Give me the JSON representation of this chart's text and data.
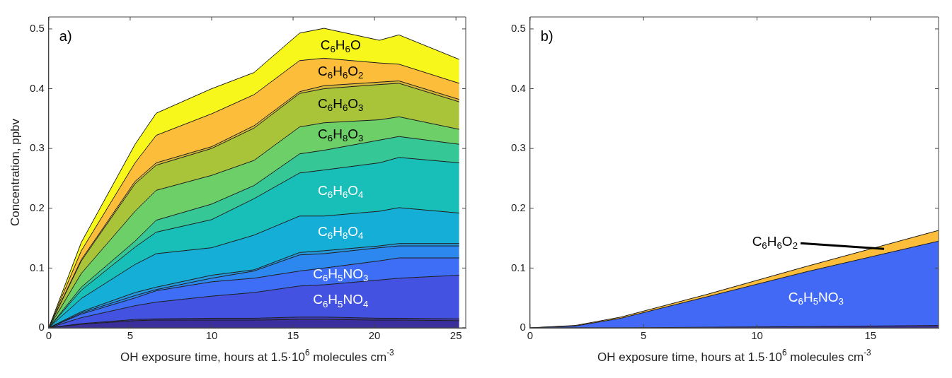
{
  "chart_data": [
    {
      "type": "area",
      "stacked": true,
      "xlabel": "OH exposure time, hours at 1.5·10$^{6}$ molecules cm$^{-3}$",
      "ylabel": "Concentration, ppbv",
      "x": [
        0,
        2,
        5.3,
        6.6,
        10,
        12.6,
        15.4,
        16.9,
        20.3,
        21.5,
        25.2
      ],
      "xlim": [
        0,
        25.6
      ],
      "ylim": [
        0,
        0.52
      ],
      "xticks": [
        0,
        5,
        10,
        15,
        20,
        25
      ],
      "yticks": [
        0,
        0.1,
        0.2,
        0.3,
        0.4,
        0.5
      ],
      "annotations": [
        "a)"
      ],
      "series": [
        {
          "color": "#3b2f9e",
          "values": [
            0,
            0.006,
            0.012,
            0.013,
            0.013,
            0.013,
            0.014,
            0.014,
            0.013,
            0.013,
            0.012
          ]
        },
        {
          "color": "#3e3bb5",
          "values": [
            0,
            0.001,
            0.002,
            0.002,
            0.003,
            0.003,
            0.004,
            0.004,
            0.003,
            0.003,
            0.003
          ]
        },
        {
          "name": "C$_{6}$H$_{5}$NO$_{4}$",
          "color": "#4352e0",
          "values": [
            0,
            0.01,
            0.023,
            0.028,
            0.037,
            0.043,
            0.052,
            0.054,
            0.064,
            0.067,
            0.073
          ]
        },
        {
          "name": "C$_{6}$H$_{5}$NO$_{3}$",
          "color": "#3d6ef5",
          "values": [
            0,
            0.006,
            0.013,
            0.019,
            0.024,
            0.024,
            0.025,
            0.028,
            0.032,
            0.034,
            0.029
          ]
        },
        {
          "color": "#2c87ee",
          "values": [
            0,
            0.002,
            0.004,
            0.002,
            0.006,
            0.012,
            0.027,
            0.024,
            0.022,
            0.02,
            0.02
          ]
        },
        {
          "color": "#2499e0",
          "values": [
            0,
            0.002,
            0.005,
            0.004,
            0.005,
            0.002,
            0.004,
            0.005,
            0.003,
            0.004,
            0.004
          ]
        },
        {
          "name": "C$_{6}$H$_{8}$O$_{4}$",
          "color": "#14aed6",
          "values": [
            0,
            0.022,
            0.047,
            0.056,
            0.046,
            0.058,
            0.061,
            0.058,
            0.058,
            0.06,
            0.051
          ]
        },
        {
          "name": "C$_{6}$H$_{6}$O$_{4}$",
          "color": "#18bfb8",
          "values": [
            0,
            0.014,
            0.029,
            0.036,
            0.047,
            0.061,
            0.072,
            0.077,
            0.081,
            0.084,
            0.084
          ]
        },
        {
          "color": "#35c796",
          "values": [
            0,
            0.005,
            0.01,
            0.02,
            0.026,
            0.022,
            0.032,
            0.033,
            0.038,
            0.035,
            0.031
          ]
        },
        {
          "name": "C$_{6}$H$_{8}$O$_{3}$",
          "color": "#6ccf68",
          "values": [
            0,
            0.023,
            0.05,
            0.05,
            0.048,
            0.042,
            0.045,
            0.046,
            0.034,
            0.033,
            0.025
          ]
        },
        {
          "name": "C$_{6}$H$_{6}$O$_{3}$",
          "color": "#aac43a",
          "values": [
            0,
            0.021,
            0.046,
            0.042,
            0.045,
            0.054,
            0.056,
            0.057,
            0.059,
            0.056,
            0.046
          ]
        },
        {
          "color": "#d6b83a",
          "values": [
            0,
            0.002,
            0.004,
            0.004,
            0.003,
            0.004,
            0.003,
            0.005,
            0.004,
            0.004,
            0.004
          ]
        },
        {
          "name": "C$_{6}$H$_{6}$O$_{2}$",
          "color": "#fbbd3a",
          "values": [
            0,
            0.015,
            0.031,
            0.046,
            0.055,
            0.052,
            0.052,
            0.046,
            0.032,
            0.028,
            0.027
          ]
        },
        {
          "name": "C$_{6}$H$_{6}$O",
          "color": "#f7f71b",
          "values": [
            0,
            0.014,
            0.031,
            0.037,
            0.042,
            0.037,
            0.046,
            0.05,
            0.038,
            0.049,
            0.04
          ]
        }
      ]
    },
    {
      "type": "area",
      "stacked": true,
      "xlabel": "OH exposure time, hours at 1.5·10$^{6}$ molecules cm$^{-3}$",
      "x": [
        0,
        2,
        4,
        7.8,
        12.2,
        18
      ],
      "xlim": [
        0,
        18
      ],
      "ylim": [
        0,
        0.52
      ],
      "xticks": [
        0,
        5,
        10,
        15
      ],
      "yticks": [
        0,
        0.1,
        0.2,
        0.3,
        0.4,
        0.5
      ],
      "annotations": [
        "b)",
        {
          "text": "C$_{6}$H$_{6}$O$_{2}$",
          "x": 15.6,
          "y": 0.132
        }
      ],
      "series": [
        {
          "color": "#3b2f9e",
          "values": [
            0,
            0,
            0,
            0.001,
            0.002,
            0.004
          ]
        },
        {
          "name": "C$_{6}$H$_{5}$NO$_{3}$",
          "color": "#4169f5",
          "values": [
            0,
            0.003,
            0.016,
            0.051,
            0.092,
            0.141
          ]
        },
        {
          "color": "#fbbd3a",
          "values": [
            0,
            0.001,
            0.002,
            0.004,
            0.009,
            0.018
          ]
        }
      ]
    }
  ]
}
